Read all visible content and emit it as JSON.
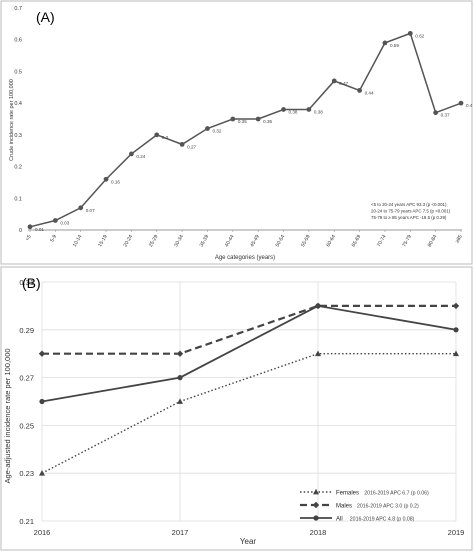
{
  "chart_data": [
    {
      "type": "line",
      "panel_label": "(A)",
      "title": "",
      "xlabel": "Age categories (years)",
      "ylabel": "Crude incidence rate per 100,000",
      "categories": [
        "<5",
        "5-9",
        "10-14",
        "15-19",
        "20-24",
        "25-29",
        "30-34",
        "35-39",
        "40-44",
        "45-49",
        "50-54",
        "55-59",
        "60-64",
        "65-69",
        "70-74",
        "75-79",
        "80-84",
        "≥85"
      ],
      "y_tick_labels": [
        "0",
        "0.1",
        "0.2",
        "0.3",
        "0.4",
        "0.5",
        "0.6",
        "0.7"
      ],
      "ylim": [
        0,
        0.7
      ],
      "grid": false,
      "series": [
        {
          "values": [
            0.01,
            0.03,
            0.07,
            0.16,
            0.24,
            0.3,
            0.27,
            0.32,
            0.35,
            0.35,
            0.38,
            0.38,
            0.47,
            0.44,
            0.59,
            0.62,
            0.37,
            0.4
          ],
          "data_labels": [
            "0.01",
            "0.03",
            "0.07",
            "0.16",
            "0.24",
            "0.3",
            "0.27",
            "0.32",
            "0.35",
            "0.35",
            "0.38",
            "0.38",
            "0.47",
            "0.44",
            "0.59",
            "0.62",
            "0.37",
            "0.4"
          ],
          "color": "#555555"
        }
      ],
      "annotations": [
        "<5 to 20-24 years APC 93.3 (p <0.001)",
        "20-24 to 75-79 years APC 7.5 (p <0.001)",
        "75-79 to ≥ 85 years APC -19.5 (p 0.29)"
      ]
    },
    {
      "type": "line",
      "panel_label": "(B)",
      "title": "",
      "xlabel": "Year",
      "ylabel": "Age-adjusted incidence rate per 100,000",
      "x": [
        "2016",
        "2017",
        "2018",
        "2019"
      ],
      "y_tick_labels": [
        "0.21",
        "0.23",
        "0.25",
        "0.27",
        "0.29",
        "0.31"
      ],
      "ylim": [
        0.21,
        0.31
      ],
      "grid": true,
      "legend_position": "bottom-right",
      "series": [
        {
          "name": "Females",
          "legend_note": "2016-2019 APC 6.7 (p 0.06)",
          "values": [
            0.23,
            0.26,
            0.28,
            0.28
          ],
          "style": "dotted",
          "marker": "triangle",
          "color": "#444444"
        },
        {
          "name": "Males",
          "legend_note": "2016-2019 APC 3.0 (p 0.2)",
          "values": [
            0.28,
            0.28,
            0.3,
            0.3
          ],
          "style": "dashed",
          "marker": "diamond",
          "color": "#444444"
        },
        {
          "name": "All",
          "legend_note": "2016-2019 APC 4.8 (p 0.08)",
          "values": [
            0.26,
            0.27,
            0.3,
            0.29
          ],
          "style": "solid",
          "marker": "circle",
          "color": "#444444"
        }
      ]
    }
  ]
}
